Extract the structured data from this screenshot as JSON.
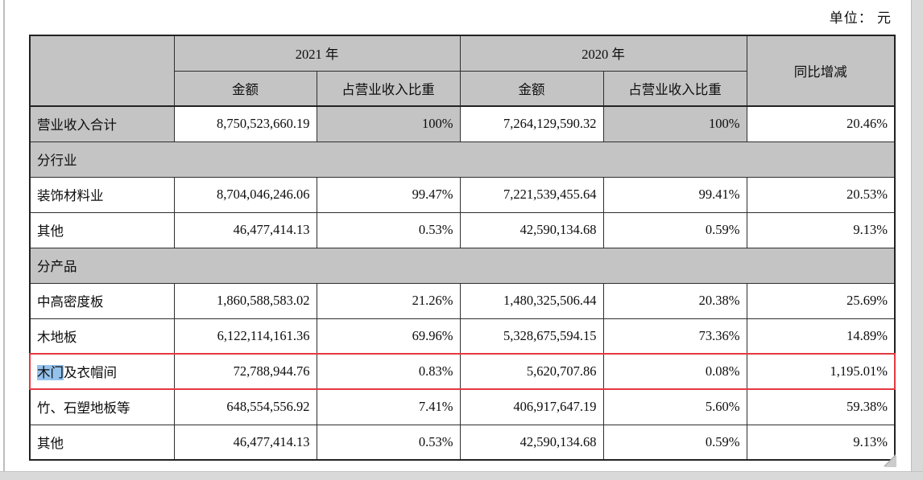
{
  "page": {
    "unit_label": "单位： 元"
  },
  "colors": {
    "header_bg": "#c4c4c4",
    "table_border": "#2e2e2e",
    "highlight_border": "#e5383f",
    "selection_bg": "#94c2ec"
  },
  "table": {
    "col_groups": [
      {
        "label": "2021 年"
      },
      {
        "label": "2020 年"
      }
    ],
    "sub_headers": [
      "金额",
      "占营业收入比重",
      "金额",
      "占营业收入比重"
    ],
    "change_header": "同比增减",
    "rows": [
      {
        "type": "data",
        "label": "营业收入合计",
        "cells": [
          "8,750,523,660.19",
          "100%",
          "7,264,129,590.32",
          "100%",
          "20.46%"
        ],
        "shaded_label": true,
        "shaded_cells": [
          1,
          3
        ]
      },
      {
        "type": "section",
        "label": "分行业"
      },
      {
        "type": "data",
        "label": "装饰材料业",
        "cells": [
          "8,704,046,246.06",
          "99.47%",
          "7,221,539,455.64",
          "99.41%",
          "20.53%"
        ]
      },
      {
        "type": "data",
        "label": "其他",
        "cells": [
          "46,477,414.13",
          "0.53%",
          "42,590,134.68",
          "0.59%",
          "9.13%"
        ]
      },
      {
        "type": "section",
        "label": "分产品"
      },
      {
        "type": "data",
        "label": "中高密度板",
        "cells": [
          "1,860,588,583.02",
          "21.26%",
          "1,480,325,506.44",
          "20.38%",
          "25.69%"
        ]
      },
      {
        "type": "data",
        "label": "木地板",
        "cells": [
          "6,122,114,161.36",
          "69.96%",
          "5,328,675,594.15",
          "73.36%",
          "14.89%"
        ]
      },
      {
        "type": "data",
        "label": "木门及衣帽间",
        "label_parts": {
          "selected": "木门",
          "rest": "及衣帽间"
        },
        "highlighted": true,
        "cells": [
          "72,788,944.76",
          "0.83%",
          "5,620,707.86",
          "0.08%",
          "1,195.01%"
        ]
      },
      {
        "type": "data",
        "label": "竹、石塑地板等",
        "cells": [
          "648,554,556.92",
          "7.41%",
          "406,917,647.19",
          "5.60%",
          "59.38%"
        ]
      },
      {
        "type": "data",
        "label": "其他",
        "cells": [
          "46,477,414.13",
          "0.53%",
          "42,590,134.68",
          "0.59%",
          "9.13%"
        ]
      }
    ]
  }
}
